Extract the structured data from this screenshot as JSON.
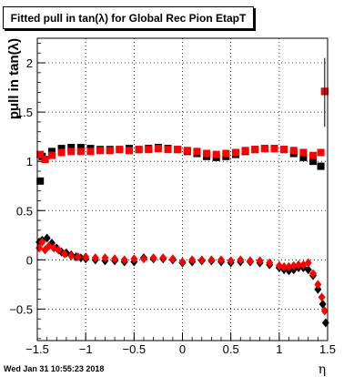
{
  "title": "Fitted pull in tan(λ) for Global Rec Pion EtapT",
  "footer": {
    "timestamp": "Wed Jan 31 10:55:23 2018"
  },
  "chart_data": {
    "type": "scatter",
    "title": "Fitted pull in tan(λ) for Global Rec Pion EtapT",
    "xlabel": "η",
    "ylabel": "pull in tan(λ)",
    "xlim": [
      -1.5,
      1.5
    ],
    "ylim": [
      -0.82,
      2.25
    ],
    "xticks": [
      -1.5,
      -1,
      -0.5,
      0,
      0.5,
      1,
      1.5
    ],
    "xtick_labels": [
      "−1.5",
      "−1",
      "−0.5",
      "0",
      "0.5",
      "1",
      "1.5"
    ],
    "yticks": [
      -0.5,
      0,
      0.5,
      1,
      1.5,
      2
    ],
    "ytick_labels": [
      "−0.5",
      "0",
      "0.5",
      "1",
      "1.5",
      "2"
    ],
    "grid": true,
    "colors": {
      "black": "#000000",
      "red": "#ff0000"
    },
    "series": [
      {
        "color": "#000000",
        "marker": "square",
        "x": [
          -1.47,
          -1.45,
          -1.35,
          -1.25,
          -1.15,
          -1.05,
          -0.95,
          -0.85,
          -0.75,
          -0.65,
          -0.55,
          -0.45,
          -0.35,
          -0.25,
          -0.15,
          -0.05,
          0.05,
          0.15,
          0.25,
          0.35,
          0.45,
          0.55,
          0.65,
          0.75,
          0.85,
          0.95,
          1.05,
          1.15,
          1.25,
          1.35,
          1.43,
          1.47
        ],
        "y": [
          0.8,
          1.05,
          1.1,
          1.13,
          1.14,
          1.14,
          1.13,
          1.12,
          1.12,
          1.12,
          1.13,
          1.12,
          1.13,
          1.14,
          1.13,
          1.12,
          1.1,
          1.08,
          1.05,
          1.04,
          1.05,
          1.07,
          1.1,
          1.12,
          1.13,
          1.13,
          1.12,
          1.08,
          1.04,
          1.0,
          0.95,
          1.71
        ]
      },
      {
        "color": "#ff0000",
        "marker": "square",
        "x": [
          -1.47,
          -1.42,
          -1.35,
          -1.25,
          -1.15,
          -1.05,
          -0.95,
          -0.85,
          -0.75,
          -0.65,
          -0.55,
          -0.45,
          -0.35,
          -0.25,
          -0.15,
          -0.05,
          0.05,
          0.15,
          0.25,
          0.35,
          0.45,
          0.55,
          0.65,
          0.75,
          0.85,
          0.95,
          1.05,
          1.15,
          1.25,
          1.35,
          1.43,
          1.47
        ],
        "y": [
          1.07,
          1.02,
          1.06,
          1.09,
          1.1,
          1.1,
          1.1,
          1.11,
          1.11,
          1.12,
          1.11,
          1.12,
          1.12,
          1.13,
          1.12,
          1.12,
          1.11,
          1.1,
          1.08,
          1.07,
          1.08,
          1.09,
          1.11,
          1.12,
          1.13,
          1.13,
          1.12,
          1.11,
          1.09,
          1.06,
          1.09,
          1.71
        ]
      },
      {
        "color": "#000000",
        "marker": "diamond",
        "x": [
          -1.48,
          -1.45,
          -1.4,
          -1.35,
          -1.3,
          -1.25,
          -1.2,
          -1.15,
          -1.1,
          -1.05,
          -1.0,
          -0.9,
          -0.8,
          -0.7,
          -0.6,
          -0.5,
          -0.4,
          -0.3,
          -0.2,
          -0.1,
          0.0,
          0.1,
          0.2,
          0.3,
          0.4,
          0.5,
          0.6,
          0.7,
          0.8,
          0.9,
          1.0,
          1.05,
          1.1,
          1.15,
          1.2,
          1.25,
          1.3,
          1.35,
          1.4,
          1.45,
          1.48
        ],
        "y": [
          0.18,
          0.2,
          0.22,
          0.17,
          0.12,
          0.08,
          0.07,
          0.05,
          0.03,
          0.02,
          0.01,
          0.0,
          -0.01,
          -0.01,
          -0.02,
          -0.02,
          0.02,
          0.01,
          0.01,
          0.0,
          -0.03,
          -0.02,
          -0.01,
          -0.01,
          -0.02,
          -0.03,
          -0.02,
          -0.02,
          -0.03,
          -0.05,
          -0.08,
          -0.1,
          -0.11,
          -0.1,
          -0.08,
          -0.08,
          -0.1,
          -0.16,
          -0.3,
          -0.45,
          -0.64
        ]
      },
      {
        "color": "#ff0000",
        "marker": "diamond",
        "x": [
          -1.48,
          -1.45,
          -1.42,
          -1.38,
          -1.33,
          -1.28,
          -1.22,
          -1.15,
          -1.08,
          -1.0,
          -0.9,
          -0.8,
          -0.7,
          -0.6,
          -0.5,
          -0.4,
          -0.3,
          -0.2,
          -0.1,
          0.0,
          0.1,
          0.2,
          0.3,
          0.4,
          0.5,
          0.6,
          0.7,
          0.8,
          0.9,
          1.0,
          1.05,
          1.1,
          1.15,
          1.2,
          1.25,
          1.3,
          1.35,
          1.4,
          1.44,
          1.47
        ],
        "y": [
          0.12,
          0.18,
          0.1,
          0.14,
          0.12,
          0.1,
          0.06,
          0.04,
          0.03,
          0.03,
          0.02,
          0.02,
          0.01,
          0.0,
          0.01,
          0.01,
          0.02,
          0.02,
          0.01,
          -0.02,
          0.0,
          0.0,
          0.0,
          0.0,
          -0.01,
          0.0,
          -0.01,
          -0.01,
          -0.03,
          -0.06,
          -0.07,
          -0.07,
          -0.06,
          -0.05,
          -0.05,
          -0.03,
          -0.14,
          -0.25,
          -0.38,
          -0.52
        ]
      }
    ]
  }
}
